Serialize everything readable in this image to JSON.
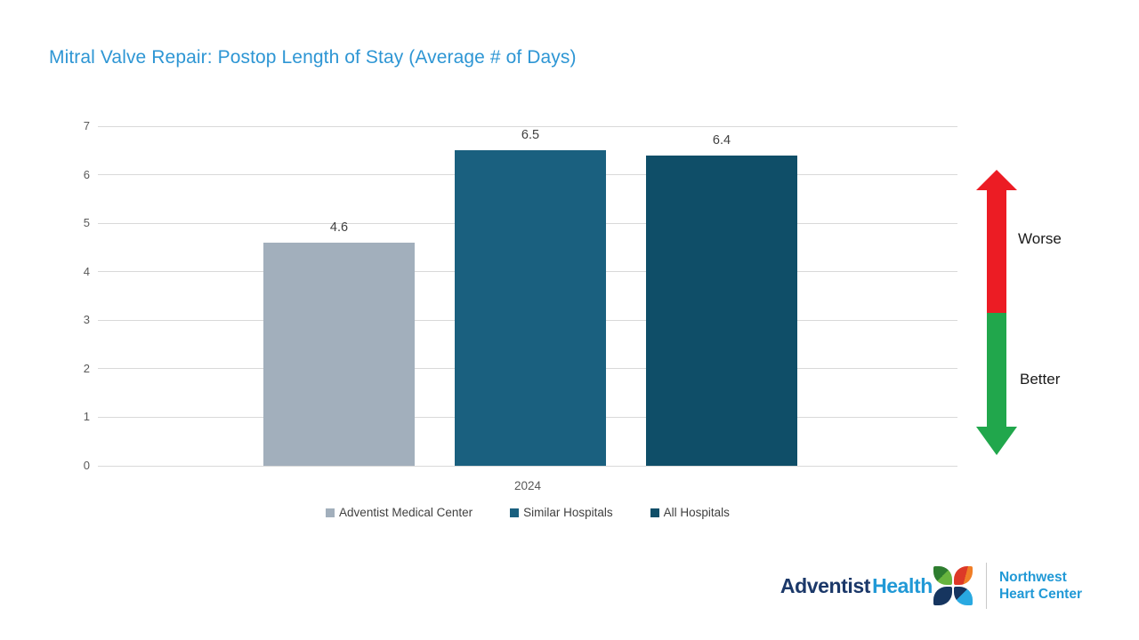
{
  "chart_data": {
    "type": "bar",
    "title": "Mitral Valve Repair: Postop Length of Stay (Average # of Days)",
    "title_color": "#2E96D4",
    "categories": [
      "2024"
    ],
    "series": [
      {
        "name": "Adventist Medical Center",
        "values": [
          4.6
        ],
        "color": "#A2AFBC"
      },
      {
        "name": "Similar Hospitals",
        "values": [
          6.5
        ],
        "color": "#1A607F"
      },
      {
        "name": "All Hospitals",
        "values": [
          6.4
        ],
        "color": "#0F4E68"
      }
    ],
    "ylim": [
      0,
      7
    ],
    "yticks": [
      0,
      1,
      2,
      3,
      4,
      5,
      6,
      7
    ],
    "grid": true,
    "gridline_color": "#D9D9D9",
    "tick_label_color": "#595959",
    "value_label_color": "#404040",
    "legend_position": "bottom",
    "legend_text_color": "#404040",
    "xlabel": "",
    "ylabel": ""
  },
  "annotations": {
    "worse_label": "Worse",
    "better_label": "Better",
    "worse_arrow_color": "#EC1C24",
    "better_arrow_color": "#21A74C"
  },
  "footer_logo": {
    "brand_word1": "Adventist",
    "brand_word2": "Health",
    "brand_word1_color": "#1B3869",
    "brand_word2_color": "#2199D6",
    "org_line1": "Northwest",
    "org_line2": "Heart Center",
    "org_color": "#2199D6",
    "icon": "adventist-health-leaf-pinwheel-icon"
  }
}
